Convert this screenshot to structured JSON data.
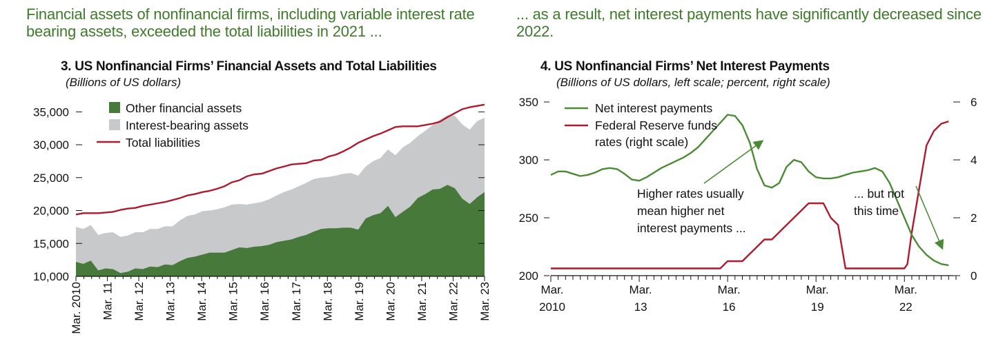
{
  "headlines": {
    "left": "Financial assets of nonfinancial firms, including variable interest rate bearing assets, exceeded the total liabilities in 2021 ...",
    "right": "... as a result, net interest payments have significantly decreased since 2022."
  },
  "colors": {
    "headline": "#3e7a2a",
    "green_area": "#477a3a",
    "gray_area": "#c8c9cb",
    "red_line": "#b0192d",
    "green_line": "#4a8a34"
  },
  "chart_data": [
    {
      "type": "area",
      "title": "3. US Nonfinancial Firms’ Financial Assets and Total Liabilities",
      "subtitle": "(Billions of US dollars)",
      "ylim": [
        10000,
        36500
      ],
      "yticks": [
        10000,
        15000,
        20000,
        25000,
        30000,
        35000
      ],
      "ytick_labels": [
        "10,000",
        "15,000",
        "20,000",
        "25,000",
        "30,000",
        "35,000"
      ],
      "xlim": [
        2010.0,
        2023.0
      ],
      "xtick_positions": [
        2010,
        2011,
        2012,
        2013,
        2014,
        2015,
        2016,
        2017,
        2018,
        2019,
        2020,
        2021,
        2022,
        2023
      ],
      "xtick_labels": [
        "Mar. 2010",
        "Mar. 11",
        "Mar. 12",
        "Mar. 13",
        "Mar. 14",
        "Mar. 15",
        "Mar. 16",
        "Mar. 17",
        "Mar. 18",
        "Mar. 19",
        "Mar. 20",
        "Mar. 21",
        "Mar. 22",
        "Mar. 23"
      ],
      "legend": [
        "Other financial assets",
        "Interest-bearing assets",
        "Total liabilities"
      ],
      "legend_position": "top-left",
      "series": [
        {
          "name": "Other financial assets",
          "kind": "area",
          "values": [
            12200,
            11900,
            12400,
            10900,
            11200,
            11100,
            10500,
            10700,
            11200,
            11100,
            11500,
            11400,
            11800,
            11700,
            12300,
            12800,
            13000,
            13300,
            13600,
            13600,
            13600,
            14000,
            14400,
            14300,
            14500,
            14600,
            14800,
            15200,
            15400,
            15600,
            16000,
            16300,
            16800,
            17200,
            17300,
            17300,
            17400,
            17400,
            17100,
            18800,
            19300,
            19600,
            20700,
            19000,
            19800,
            20600,
            21900,
            22500,
            23200,
            23300,
            23900,
            23400,
            21800,
            21000,
            22000,
            22800
          ]
        },
        {
          "name": "Interest-bearing assets",
          "kind": "area_top",
          "values": [
            17500,
            17200,
            17800,
            16300,
            16600,
            16700,
            16000,
            16200,
            16700,
            16700,
            17200,
            17200,
            17600,
            17600,
            18500,
            19200,
            19400,
            19900,
            20000,
            20200,
            20500,
            20900,
            21000,
            20900,
            21100,
            21300,
            21700,
            22300,
            22800,
            23200,
            23700,
            24200,
            24800,
            25000,
            25100,
            25300,
            25600,
            25700,
            25300,
            26700,
            27500,
            28000,
            29300,
            28400,
            29600,
            30300,
            31300,
            32100,
            33000,
            33800,
            34500,
            34400,
            33100,
            32300,
            33600,
            34100
          ]
        },
        {
          "name": "Total liabilities",
          "kind": "line",
          "values": [
            19400,
            19600,
            19600,
            19600,
            19700,
            19800,
            20100,
            20300,
            20400,
            20700,
            20900,
            21100,
            21300,
            21600,
            21900,
            22300,
            22500,
            22800,
            23000,
            23300,
            23700,
            24300,
            24600,
            25200,
            25500,
            25600,
            26000,
            26400,
            26700,
            27000,
            27100,
            27200,
            27600,
            27700,
            28200,
            28500,
            29000,
            29600,
            30300,
            30800,
            31300,
            31700,
            32200,
            32700,
            32800,
            32800,
            32800,
            33000,
            33200,
            33500,
            34200,
            34800,
            35400,
            35700,
            35900,
            36100
          ]
        }
      ]
    },
    {
      "type": "line",
      "title": "4. US Nonfinancial Firms’ Net Interest Payments",
      "subtitle": "(Billions of US dollars, left scale; percent, right scale)",
      "ylim": [
        200,
        350
      ],
      "yticks": [
        200,
        250,
        300,
        350
      ],
      "ytick_labels": [
        "200",
        "250",
        "300",
        "350"
      ],
      "y2lim": [
        0,
        6
      ],
      "y2ticks": [
        0,
        2,
        4,
        6
      ],
      "y2tick_labels": [
        "0",
        "2",
        "4",
        "6"
      ],
      "xlim": [
        2010.0,
        2023.75
      ],
      "xtick_positions": [
        2010,
        2013,
        2016,
        2019,
        2022
      ],
      "xtick_labels_line1": [
        "Mar.",
        "Mar.",
        "Mar.",
        "Mar.",
        "Mar."
      ],
      "xtick_labels_line2": [
        "2010",
        "13",
        "16",
        "19",
        "22"
      ],
      "legend": [
        "Net interest payments",
        "Federal Reserve funds rates (right scale)"
      ],
      "legend_position": "top-left",
      "annotations": [
        {
          "text_lines": [
            "Higher rates usually",
            "mean higher net",
            "interest payments ..."
          ]
        },
        {
          "text_lines": [
            "... but not",
            "this time"
          ]
        }
      ],
      "series": [
        {
          "name": "Net interest payments",
          "axis": "left",
          "x": [
            2010.0,
            2010.25,
            2010.5,
            2010.75,
            2011.0,
            2011.25,
            2011.5,
            2011.75,
            2012.0,
            2012.25,
            2012.5,
            2012.75,
            2013.0,
            2013.25,
            2013.5,
            2013.75,
            2014.0,
            2014.25,
            2014.5,
            2014.75,
            2015.0,
            2015.25,
            2015.5,
            2015.75,
            2016.0,
            2016.25,
            2016.5,
            2016.75,
            2017.0,
            2017.25,
            2017.5,
            2017.75,
            2018.0,
            2018.25,
            2018.5,
            2018.75,
            2019.0,
            2019.25,
            2019.5,
            2019.75,
            2020.0,
            2020.25,
            2020.5,
            2020.75,
            2021.0,
            2021.25,
            2021.5,
            2021.75,
            2022.0,
            2022.25,
            2022.5,
            2022.75,
            2023.0,
            2023.25,
            2023.5
          ],
          "values": [
            287,
            290,
            290,
            288,
            286,
            287,
            289,
            292,
            293,
            292,
            288,
            283,
            282,
            285,
            289,
            293,
            296,
            299,
            302,
            306,
            311,
            318,
            325,
            332,
            339,
            338,
            330,
            315,
            292,
            278,
            276,
            280,
            294,
            300,
            298,
            290,
            285,
            284,
            284,
            285,
            287,
            289,
            290,
            291,
            293,
            290,
            280,
            265,
            250,
            235,
            225,
            218,
            213,
            210,
            209
          ]
        },
        {
          "name": "Federal Reserve funds rates (right scale)",
          "axis": "right",
          "x": [
            2010.0,
            2011.0,
            2012.0,
            2013.0,
            2014.0,
            2015.0,
            2015.75,
            2016.0,
            2016.25,
            2016.5,
            2016.75,
            2017.0,
            2017.25,
            2017.5,
            2017.75,
            2018.0,
            2018.25,
            2018.5,
            2018.75,
            2019.0,
            2019.25,
            2019.5,
            2019.75,
            2020.0,
            2020.25,
            2021.0,
            2021.5,
            2022.0,
            2022.1,
            2022.25,
            2022.5,
            2022.75,
            2023.0,
            2023.25,
            2023.5
          ],
          "values": [
            0.25,
            0.25,
            0.25,
            0.25,
            0.25,
            0.25,
            0.25,
            0.5,
            0.5,
            0.5,
            0.75,
            1.0,
            1.25,
            1.25,
            1.5,
            1.75,
            2.0,
            2.25,
            2.5,
            2.5,
            2.5,
            2.0,
            1.75,
            0.25,
            0.25,
            0.25,
            0.25,
            0.25,
            0.4,
            1.5,
            3.0,
            4.5,
            5.0,
            5.25,
            5.33
          ]
        }
      ]
    }
  ]
}
